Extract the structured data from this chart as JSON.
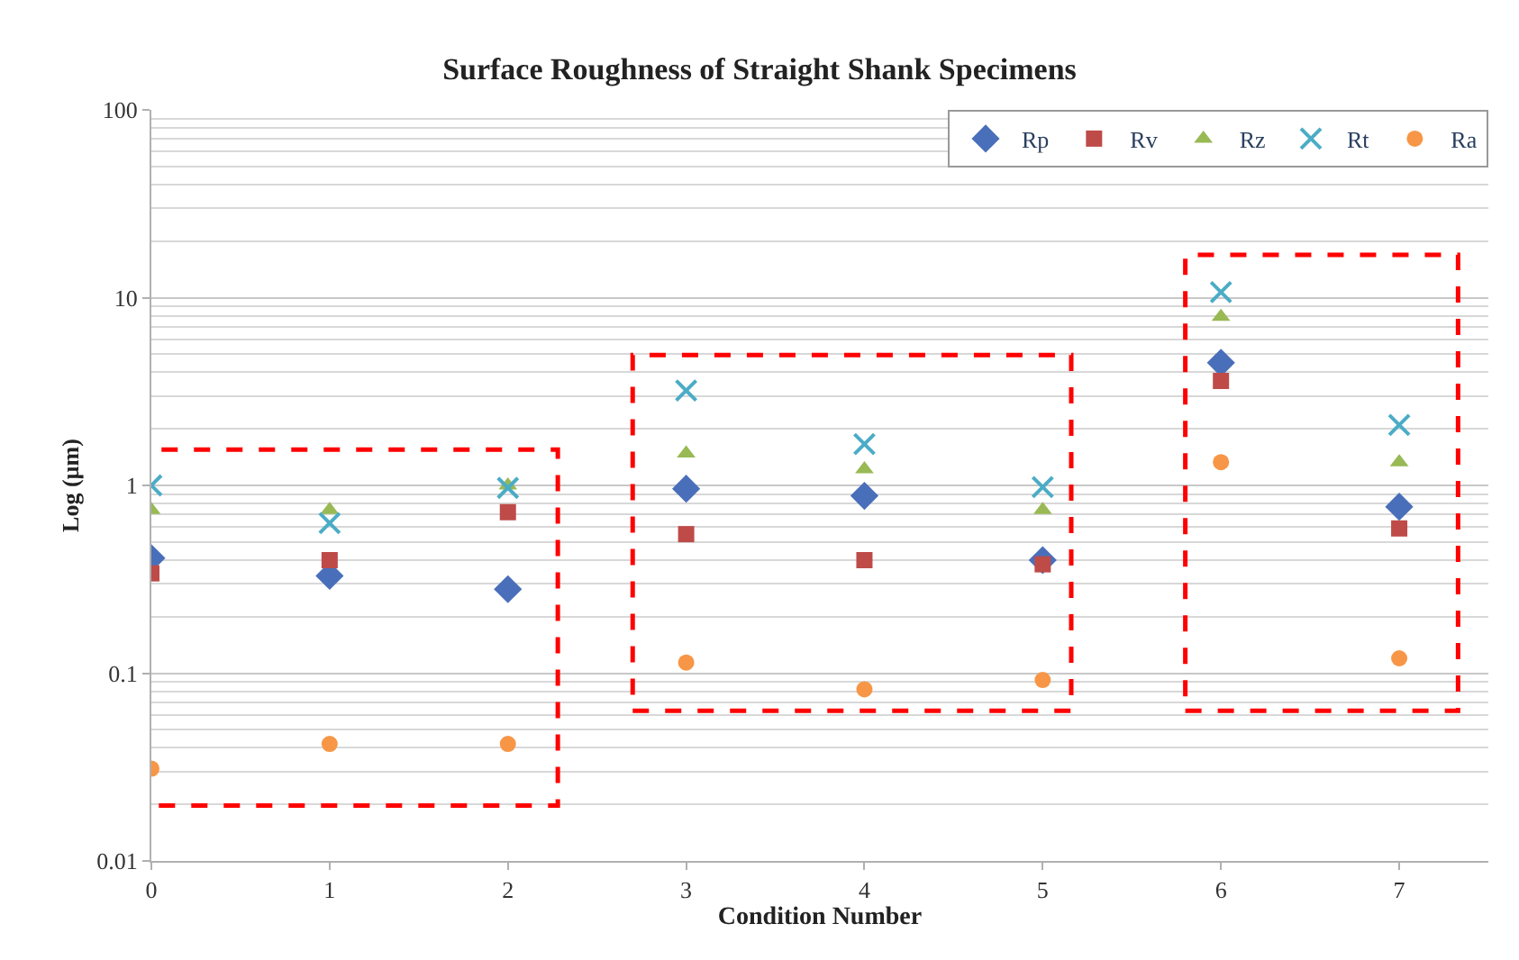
{
  "chart_data": {
    "type": "scatter",
    "title": "Surface Roughness of Straight Shank Specimens",
    "xlabel": "Condition Number",
    "ylabel": "Log (µm)",
    "x": [
      0,
      1,
      2,
      3,
      4,
      5,
      6,
      7
    ],
    "series": [
      {
        "name": "Rp",
        "color": "#4a6fba",
        "marker": "diamond",
        "values": [
          0.41,
          0.33,
          0.28,
          0.96,
          0.88,
          0.4,
          4.5,
          0.77
        ]
      },
      {
        "name": "Rv",
        "color": "#be4b48",
        "marker": "square",
        "values": [
          0.34,
          0.4,
          0.72,
          0.55,
          0.4,
          0.38,
          3.6,
          0.59
        ]
      },
      {
        "name": "Rz",
        "color": "#98b954",
        "marker": "triangle",
        "values": [
          0.74,
          0.74,
          1.0,
          1.48,
          1.22,
          0.74,
          7.9,
          1.33
        ]
      },
      {
        "name": "Rt",
        "color": "#4bacc6",
        "marker": "cross",
        "values": [
          1.0,
          0.63,
          0.97,
          3.2,
          1.66,
          0.98,
          10.7,
          2.1
        ]
      },
      {
        "name": "Ra",
        "color": "#f79646",
        "marker": "circle",
        "values": [
          0.031,
          0.042,
          0.042,
          0.114,
          0.082,
          0.092,
          1.33,
          0.12
        ]
      }
    ],
    "log": "y",
    "xlim": [
      0,
      7.5
    ],
    "xticks": [
      0,
      1,
      2,
      3,
      4,
      5,
      6,
      7
    ],
    "ylim": [
      0.01,
      100
    ],
    "yticks": [
      0.01,
      0.1,
      1,
      10,
      100
    ],
    "grid": "y",
    "legend": "top right"
  }
}
